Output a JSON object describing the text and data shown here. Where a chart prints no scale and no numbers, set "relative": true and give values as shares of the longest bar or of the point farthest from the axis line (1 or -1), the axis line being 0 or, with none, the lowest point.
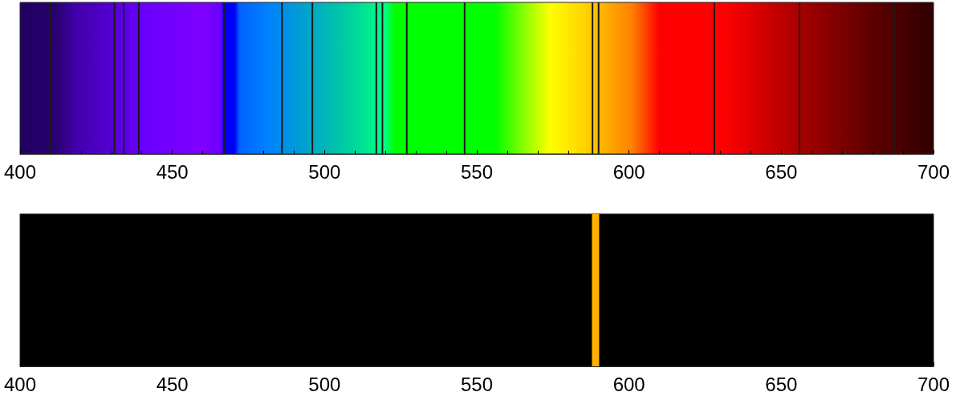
{
  "chart_data": [
    {
      "type": "bar",
      "relative": true,
      "xlim": [
        400,
        700
      ],
      "xticks": [
        400,
        450,
        500,
        550,
        600,
        650,
        700
      ],
      "x": [
        410,
        431,
        434,
        439,
        467,
        486,
        496,
        517,
        519,
        527,
        546,
        588,
        590,
        628,
        656,
        687
      ],
      "values": [
        1,
        1,
        1,
        1,
        1,
        1,
        1,
        1,
        1,
        1,
        1,
        1,
        1,
        1,
        1,
        1
      ],
      "color": "#1a1a1a"
    },
    {
      "type": "bar",
      "relative": true,
      "xlim": [
        400,
        700
      ],
      "xticks": [
        400,
        450,
        500,
        550,
        600,
        650,
        700
      ],
      "x": [
        589
      ],
      "values": [
        1
      ],
      "color": "#ffb000"
    }
  ]
}
